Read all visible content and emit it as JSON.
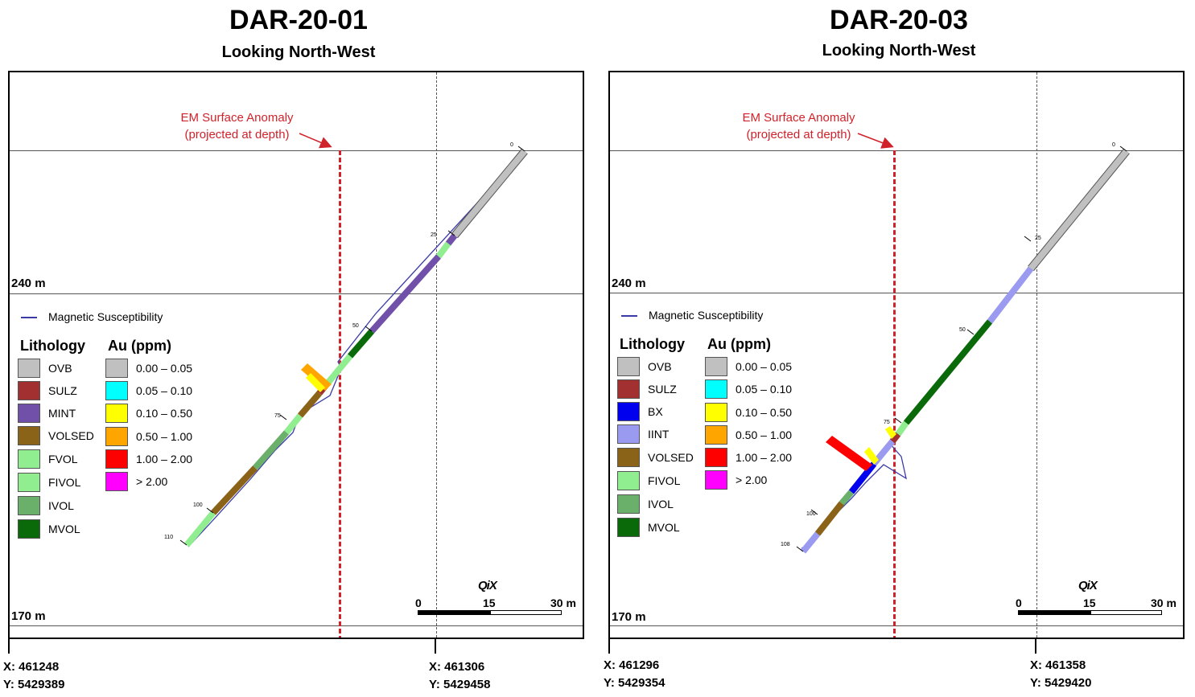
{
  "panels": [
    {
      "title": "DAR-20-01",
      "subtitle": "Looking North-West",
      "levels": {
        "upper": "240 m",
        "lower": "170 m"
      },
      "em_anomaly": {
        "line1": "EM Surface Anomaly",
        "line2": "(projected at depth)"
      },
      "magnetic_label": "Magnetic Susceptibility",
      "legend": {
        "lithology_header": "Lithology",
        "au_header": "Au (ppm)",
        "lithology": [
          {
            "label": "OVB",
            "color": "#c0c0c0"
          },
          {
            "label": "SULZ",
            "color": "#a33030"
          },
          {
            "label": "MINT",
            "color": "#7050a8"
          },
          {
            "label": "VOLSED",
            "color": "#8b6318"
          },
          {
            "label": "FVOL",
            "color": "#90ee90"
          },
          {
            "label": "FIVOL",
            "color": "#90ee90"
          },
          {
            "label": "IVOL",
            "color": "#6aaf6a"
          },
          {
            "label": "MVOL",
            "color": "#0a6a0a"
          }
        ],
        "au": [
          {
            "label": "0.00 – 0.05",
            "color": "#c0c0c0"
          },
          {
            "label": "0.05 – 0.10",
            "color": "#00ffff"
          },
          {
            "label": "0.10 – 0.50",
            "color": "#ffff00"
          },
          {
            "label": "0.50 – 1.00",
            "color": "#ffa500"
          },
          {
            "label": "1.00 – 2.00",
            "color": "#ff0000"
          },
          {
            "label": "> 2.00",
            "color": "#ff00ff"
          }
        ]
      },
      "depth_marks": [
        "0",
        "25",
        "50",
        "75",
        "100",
        "110"
      ],
      "scale": {
        "zero": "0",
        "mid": "15",
        "end": "30 m",
        "logo": "QiX"
      },
      "coords": {
        "left": {
          "x": "X: 461248",
          "y": "Y: 5429389"
        },
        "right": {
          "x": "X: 461306",
          "y": "Y: 5429458"
        }
      }
    },
    {
      "title": "DAR-20-03",
      "subtitle": "Looking North-West",
      "levels": {
        "upper": "240 m",
        "lower": "170 m"
      },
      "em_anomaly": {
        "line1": "EM Surface Anomaly",
        "line2": "(projected at depth)"
      },
      "magnetic_label": "Magnetic Susceptibility",
      "legend": {
        "lithology_header": "Lithology",
        "au_header": "Au (ppm)",
        "lithology": [
          {
            "label": "OVB",
            "color": "#c0c0c0"
          },
          {
            "label": "SULZ",
            "color": "#a33030"
          },
          {
            "label": "BX",
            "color": "#0000ee"
          },
          {
            "label": "IINT",
            "color": "#9a9af0"
          },
          {
            "label": "VOLSED",
            "color": "#8b6318"
          },
          {
            "label": "FIVOL",
            "color": "#90ee90"
          },
          {
            "label": "IVOL",
            "color": "#6aaf6a"
          },
          {
            "label": "MVOL",
            "color": "#0a6a0a"
          }
        ],
        "au": [
          {
            "label": "0.00 – 0.05",
            "color": "#c0c0c0"
          },
          {
            "label": "0.05 – 0.10",
            "color": "#00ffff"
          },
          {
            "label": "0.10 – 0.50",
            "color": "#ffff00"
          },
          {
            "label": "0.50 – 1.00",
            "color": "#ffa500"
          },
          {
            "label": "1.00 – 2.00",
            "color": "#ff0000"
          },
          {
            "label": "> 2.00",
            "color": "#ff00ff"
          }
        ]
      },
      "depth_marks": [
        "0",
        "25",
        "50",
        "75",
        "100",
        "108"
      ],
      "scale": {
        "zero": "0",
        "mid": "15",
        "end": "30 m",
        "logo": "QiX"
      },
      "coords": {
        "left": {
          "x": "X: 461296",
          "y": "Y: 5429354"
        },
        "right": {
          "x": "X: 461358",
          "y": "Y: 5429420"
        }
      }
    }
  ]
}
